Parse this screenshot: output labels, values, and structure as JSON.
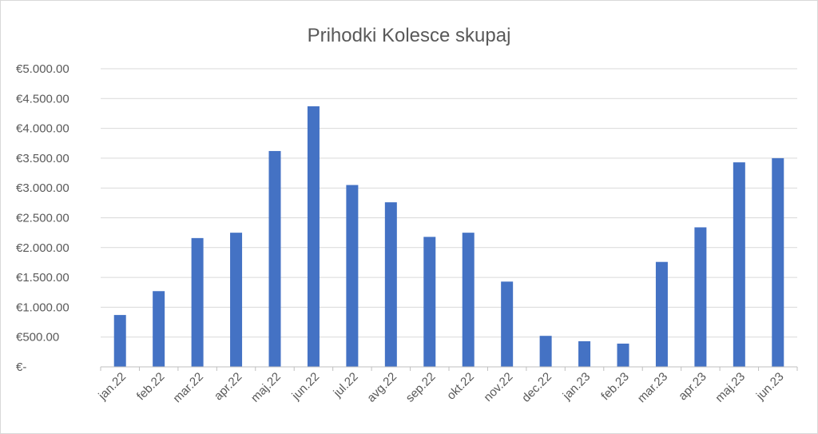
{
  "chart_data": {
    "type": "bar",
    "title": "Prihodki Kolesce skupaj",
    "xlabel": "",
    "ylabel": "",
    "ylim": [
      0,
      5000
    ],
    "y_ticks": [
      0,
      500,
      1000,
      1500,
      2000,
      2500,
      3000,
      3500,
      4000,
      4500,
      5000
    ],
    "y_tick_labels": [
      "€-",
      "€500.00",
      "€1.000.00",
      "€1.500.00",
      "€2.000.00",
      "€2.500.00",
      "€3.000.00",
      "€3.500.00",
      "€4.000.00",
      "€4.500.00",
      "€5.000.00"
    ],
    "grid": true,
    "legend": "none",
    "bar_color": "#4472c4",
    "categories": [
      "jan.22",
      "feb.22",
      "mar.22",
      "apr.22",
      "maj.22",
      "jun.22",
      "jul.22",
      "avg.22",
      "sep.22",
      "okt.22",
      "nov.22",
      "dec.22",
      "jan.23",
      "feb.23",
      "mar.23",
      "apr.23",
      "maj.23",
      "jun.23"
    ],
    "values": [
      870,
      1270,
      2160,
      2250,
      3620,
      4370,
      3050,
      2760,
      2180,
      2250,
      1430,
      520,
      430,
      390,
      1760,
      2340,
      3430,
      3500
    ]
  }
}
